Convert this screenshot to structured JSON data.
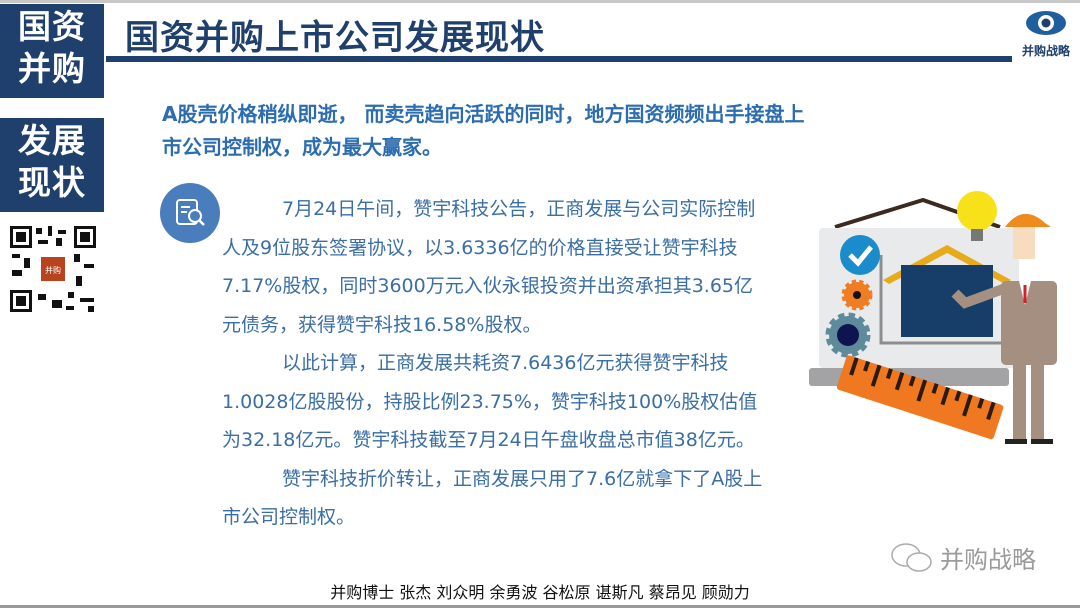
{
  "side_labels": {
    "top": [
      "国资",
      "并购"
    ],
    "bottom": [
      "发展",
      "现状"
    ]
  },
  "header": {
    "title": "国资并购上市公司发展现状",
    "logo_text": "并购战略"
  },
  "subtitle": [
    "A股壳价格稍纵即逝， 而卖壳趋向活跃的同时，地方国资频频出手接盘上",
    "市公司控制权，成为最大赢家。"
  ],
  "body": {
    "paragraphs": [
      [
        "7月24日午间，赞宇科技公告，正商发展与公司实际控制",
        "人及9位股东签署协议，以3.6336亿的价格直接受让赞宇科技",
        "7.17%股权，同时3600万元入伙永银投资并出资承担其3.65亿",
        "元债务，获得赞宇科技16.58%股权。"
      ],
      [
        "以此计算，正商发展共耗资7.6436亿元获得赞宇科技",
        "1.0028亿股股份，持股比例23.75%，赞宇科技100%股权估值",
        "为32.18亿元。赞宇科技截至7月24日午盘收盘总市值38亿元。"
      ],
      [
        "赞宇科技折价转让，正商发展只用了7.6亿就拿下了A股上",
        "市公司控制权。"
      ]
    ]
  },
  "qr_stamp_text": "并购战略",
  "watermark": "并购战略",
  "footer": "并购博士 张杰 刘众明 余勇波 谷松原 谌斯凡 蔡昂见 顾勋力",
  "colors": {
    "navy": "#1f3f6d",
    "body_text": "#3a6ea5",
    "subtitle": "#2c6cb0"
  }
}
